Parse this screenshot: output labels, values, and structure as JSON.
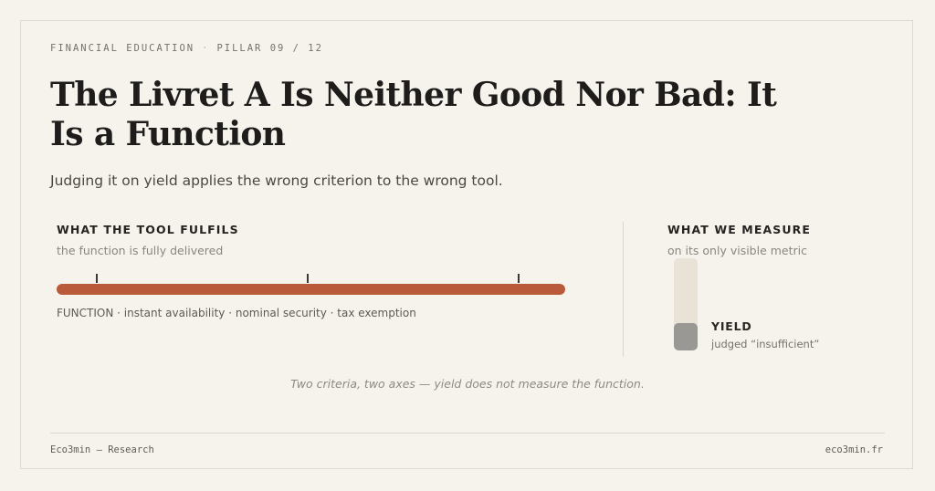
{
  "header": {
    "category": "FINANCIAL EDUCATION",
    "separator": "·",
    "pillar": "PILLAR 09 / 12"
  },
  "title": "The Livret A Is Neither Good Nor Bad: It Is a Function",
  "subtitle": "Judging it on yield applies the wrong criterion to the wrong tool.",
  "function_panel": {
    "heading": "WHAT THE TOOL FULFILS",
    "subheading": "the function is fully delivered",
    "level": 1.0,
    "caption": "FUNCTION · instant availability · nominal security · tax exemption",
    "color": "#b95b3a"
  },
  "measure_panel": {
    "heading": "WHAT WE MEASURE",
    "subheading": "on its only visible metric",
    "level": 0.3,
    "label": "YIELD",
    "note": "judged “insufficient”",
    "track_color": "#e9e2d6",
    "fill_color": "#999895"
  },
  "footnote": "Two criteria, two axes — yield does not measure the function.",
  "footer": {
    "left": "Eco3min — Research",
    "right": "eco3min.fr"
  }
}
